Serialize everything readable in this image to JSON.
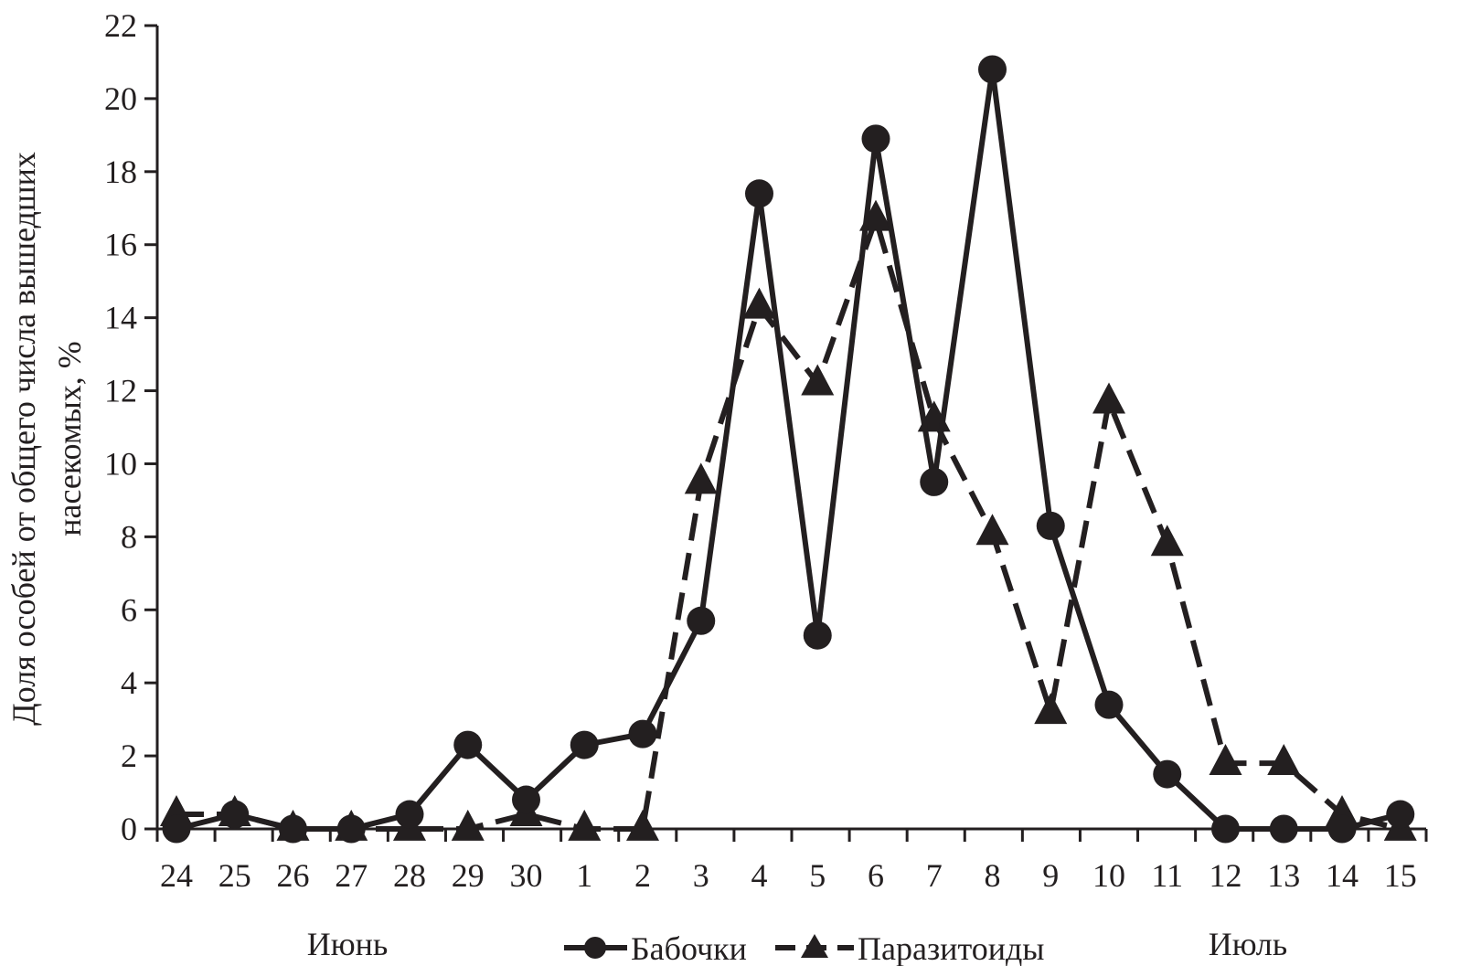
{
  "chart_data": {
    "type": "line",
    "ylabel_line1": "Доля особей от общего числа вышедших",
    "ylabel_line2": "насекомых, %",
    "ylim": [
      0,
      22
    ],
    "yticks": [
      0,
      2,
      4,
      6,
      8,
      10,
      12,
      14,
      16,
      18,
      20,
      22
    ],
    "categories": [
      "24",
      "25",
      "26",
      "27",
      "28",
      "29",
      "30",
      "1",
      "2",
      "3",
      "4",
      "5",
      "6",
      "7",
      "8",
      "9",
      "10",
      "11",
      "12",
      "13",
      "14",
      "15"
    ],
    "month_labels": {
      "june": "Июнь",
      "july": "Июль"
    },
    "legend_placement": "bottom-center",
    "grid": false,
    "series": [
      {
        "name": "Бабочки",
        "marker": "circle",
        "line_style": "solid",
        "color": "#231f20",
        "values": [
          0,
          0.4,
          0,
          0,
          0.4,
          2.3,
          0.8,
          2.3,
          2.6,
          5.7,
          17.4,
          5.3,
          18.9,
          9.5,
          20.8,
          8.3,
          3.4,
          1.5,
          0,
          0,
          0,
          0.4
        ]
      },
      {
        "name": "Паразитоиды",
        "marker": "triangle",
        "line_style": "dashed",
        "color": "#231f20",
        "values": [
          0.4,
          0.4,
          0,
          0,
          0,
          0,
          0.4,
          0,
          0,
          9.5,
          14.3,
          12.2,
          16.7,
          11.2,
          8.1,
          3.2,
          11.7,
          7.8,
          1.8,
          1.8,
          0.4,
          0
        ]
      }
    ]
  }
}
